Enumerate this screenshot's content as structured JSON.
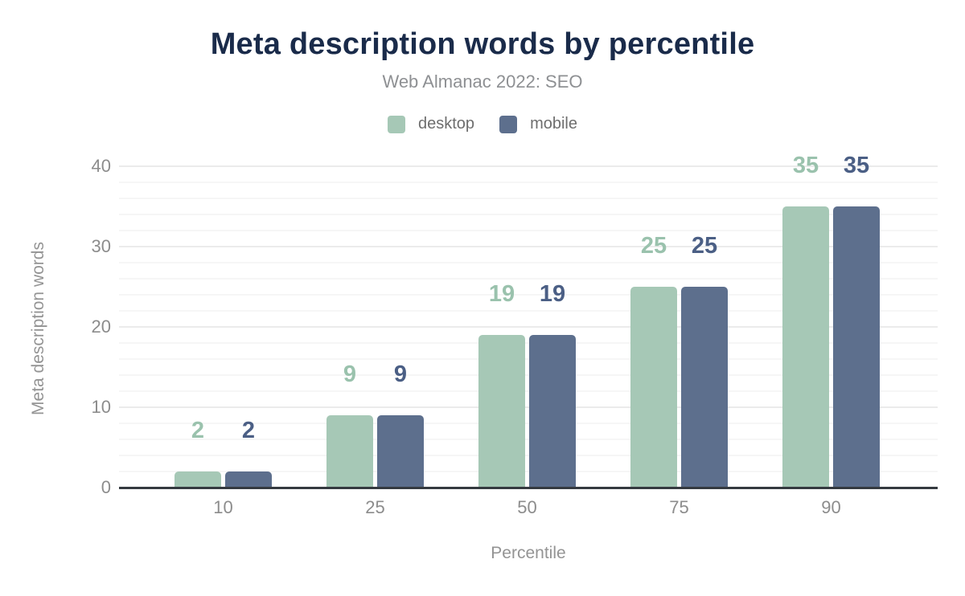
{
  "chart_data": {
    "type": "bar",
    "title": "Meta description words by percentile",
    "subtitle": "Web Almanac 2022: SEO",
    "xlabel": "Percentile",
    "ylabel": "Meta description words",
    "categories": [
      "10",
      "25",
      "50",
      "75",
      "90"
    ],
    "series": [
      {
        "name": "desktop",
        "values": [
          2,
          9,
          19,
          25,
          35
        ],
        "color": "#a6c8b6",
        "label_color": "#9ac2ad"
      },
      {
        "name": "mobile",
        "values": [
          2,
          9,
          19,
          25,
          35
        ],
        "color": "#5d6f8d",
        "label_color": "#4b5f85"
      }
    ],
    "ylim": [
      0,
      40
    ],
    "y_ticks": [
      0,
      10,
      20,
      30,
      40
    ],
    "y_major_step": 10,
    "y_minor_step": 2,
    "grid": true,
    "legend_position": "top",
    "data_labels": true
  },
  "colors": {
    "background": "#ffffff",
    "title": "#1a2b4a",
    "subtitle": "#8e9093",
    "tick_label": "#8c8c8c",
    "axis_title": "#949494",
    "legend_label": "#6e6e6e",
    "axis_line": "#353a40",
    "grid_major": "#ebebeb",
    "grid_minor": "#f6f6f6"
  }
}
